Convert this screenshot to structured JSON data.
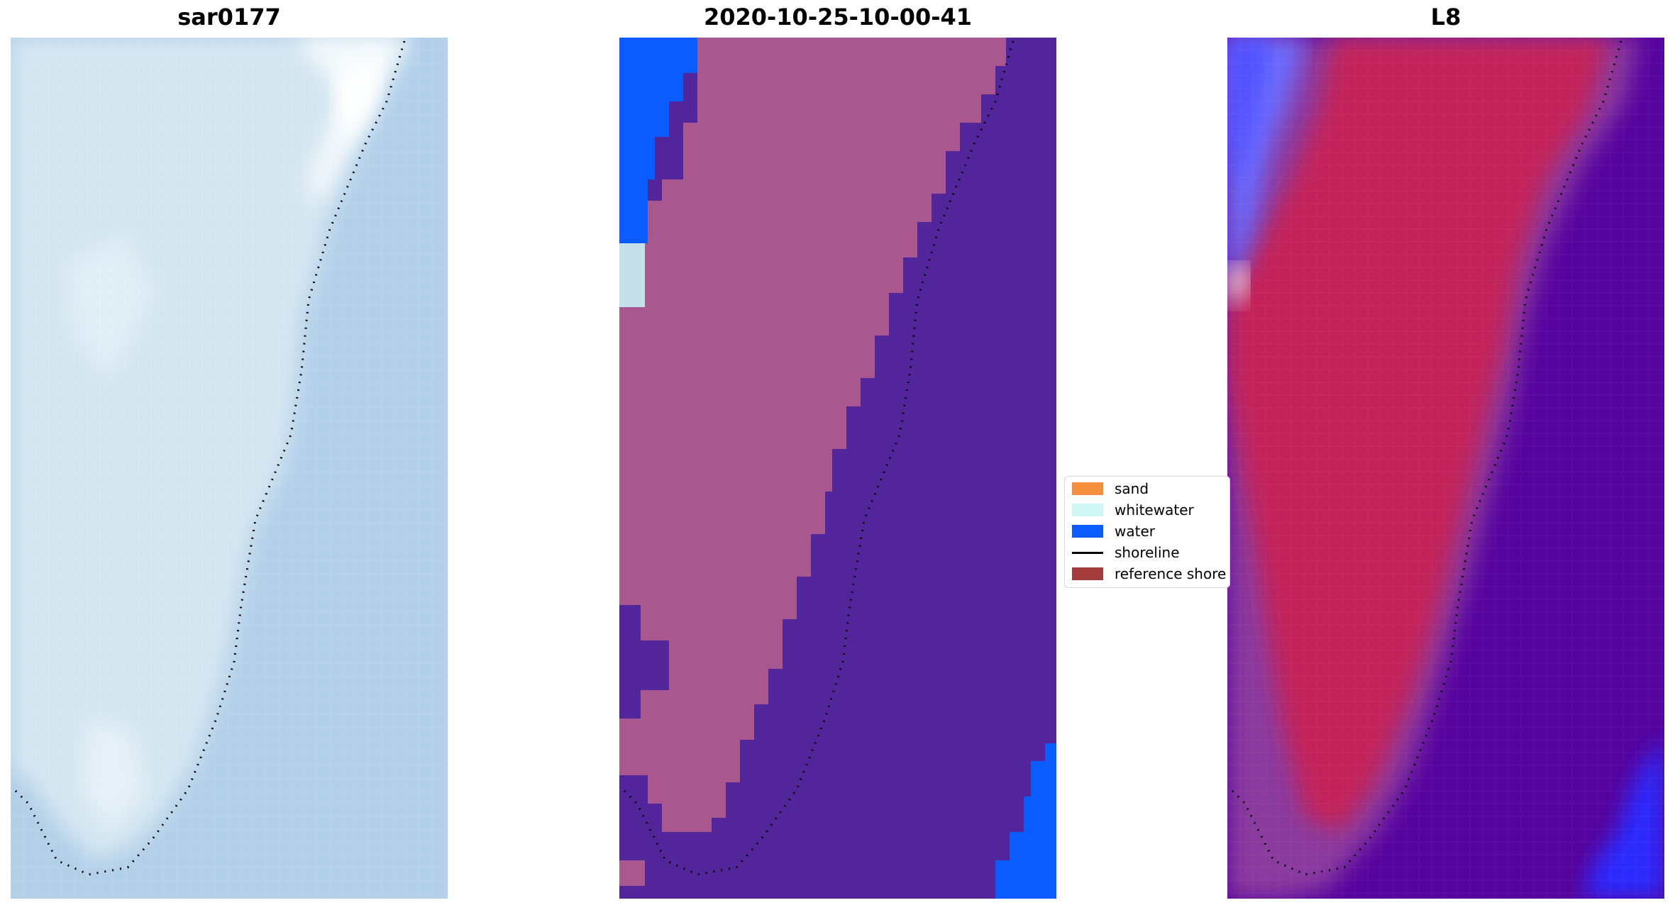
{
  "panels": [
    {
      "title": "sar0177"
    },
    {
      "title": "2020-10-25-10-00-41"
    },
    {
      "title": "L8"
    }
  ],
  "legend": {
    "items": [
      {
        "label": "sand",
        "color": "#f58e3c",
        "kind": "patch"
      },
      {
        "label": "whitewater",
        "color": "#cff8f5",
        "kind": "patch"
      },
      {
        "label": "water",
        "color": "#0a5cff",
        "kind": "patch"
      },
      {
        "label": "shoreline",
        "color": "#000000",
        "kind": "line"
      },
      {
        "label": "reference shore",
        "color": "#a23b3b",
        "kind": "patch"
      }
    ]
  },
  "colors": {
    "sar_background": "#b3d0e9",
    "sar_land": "#d5e6f1",
    "sar_bright": "#ffffff",
    "classified_land": "#a8578f",
    "classified_water": "#53259b",
    "classified_ocean": "#0a5cff",
    "classified_whitewater": "#c6e0ea",
    "l8_land": "#c32158",
    "l8_water": "#55049e",
    "l8_edge": "#8a3b9e",
    "l8_blue": "#2929ff",
    "shoreline_dots": "#000000"
  }
}
